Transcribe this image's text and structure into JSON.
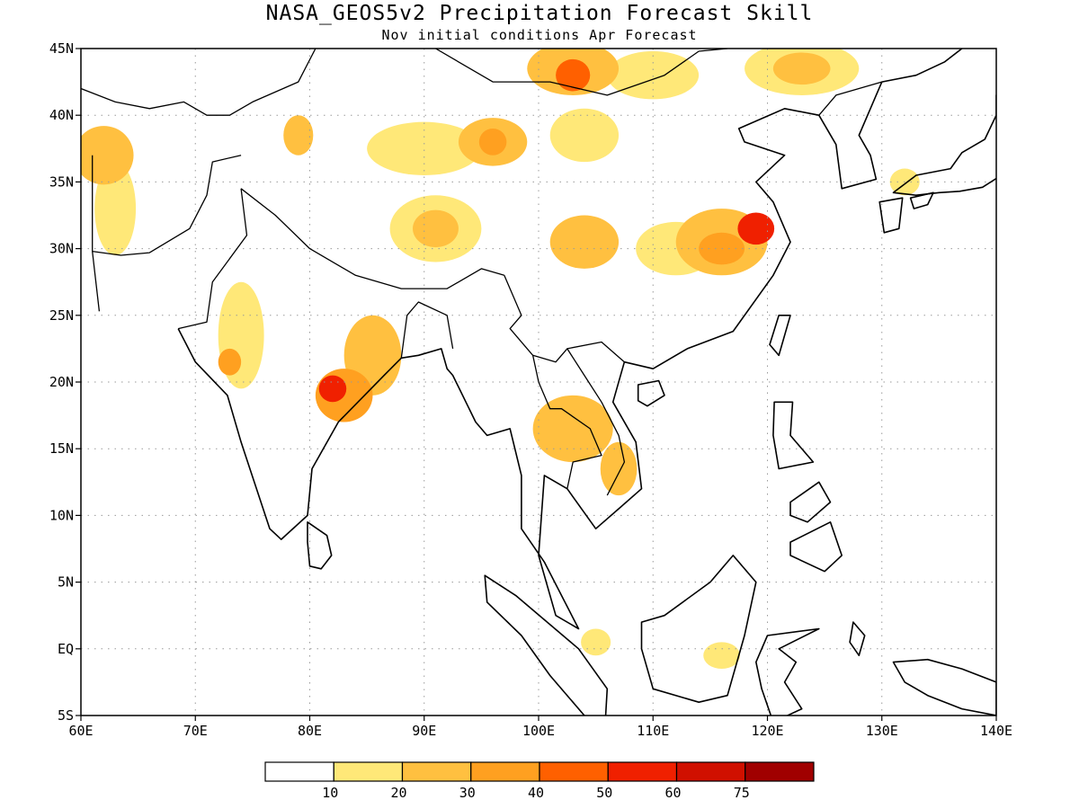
{
  "title": "NASA_GEOS5v2 Precipitation Forecast Skill",
  "subtitle": "Nov initial conditions  Apr Forecast",
  "map": {
    "lon_range": [
      60,
      140
    ],
    "lat_range": [
      -5,
      45
    ],
    "grid": true,
    "coastlines": true,
    "political_boundaries": true
  },
  "axes": {
    "x_ticks": [
      {
        "value": 60,
        "label": "60E"
      },
      {
        "value": 70,
        "label": "70E"
      },
      {
        "value": 80,
        "label": "80E"
      },
      {
        "value": 90,
        "label": "90E"
      },
      {
        "value": 100,
        "label": "100E"
      },
      {
        "value": 110,
        "label": "110E"
      },
      {
        "value": 120,
        "label": "120E"
      },
      {
        "value": 130,
        "label": "130E"
      },
      {
        "value": 140,
        "label": "140E"
      }
    ],
    "y_ticks": [
      {
        "value": 45,
        "label": "45N"
      },
      {
        "value": 40,
        "label": "40N"
      },
      {
        "value": 35,
        "label": "35N"
      },
      {
        "value": 30,
        "label": "30N"
      },
      {
        "value": 25,
        "label": "25N"
      },
      {
        "value": 20,
        "label": "20N"
      },
      {
        "value": 15,
        "label": "15N"
      },
      {
        "value": 10,
        "label": "10N"
      },
      {
        "value": 5,
        "label": "5N"
      },
      {
        "value": 0,
        "label": "EQ"
      },
      {
        "value": -5,
        "label": "5S"
      }
    ]
  },
  "colorbar": {
    "colors": [
      "#ffffff",
      "#ffe878",
      "#ffc040",
      "#ffa020",
      "#ff6000",
      "#f02000",
      "#d01000",
      "#a00000"
    ],
    "labels": [
      "10",
      "20",
      "30",
      "40",
      "50",
      "60",
      "75"
    ]
  },
  "skill_regions": [
    {
      "lon": 62,
      "lat": 37,
      "rx": 2.6,
      "ry": 2.2,
      "level": 2
    },
    {
      "lon": 63,
      "lat": 33,
      "rx": 1.8,
      "ry": 3.5,
      "level": 1
    },
    {
      "lon": 79,
      "lat": 38.5,
      "rx": 1.3,
      "ry": 1.5,
      "level": 2
    },
    {
      "lon": 74,
      "lat": 23.5,
      "rx": 2,
      "ry": 4,
      "level": 1
    },
    {
      "lon": 73,
      "lat": 21.5,
      "rx": 1,
      "ry": 1,
      "level": 3
    },
    {
      "lon": 83,
      "lat": 19,
      "rx": 2.5,
      "ry": 2,
      "level": 3
    },
    {
      "lon": 82,
      "lat": 19.5,
      "rx": 1.2,
      "ry": 1,
      "level": 5
    },
    {
      "lon": 85.5,
      "lat": 22,
      "rx": 2.5,
      "ry": 3,
      "level": 2
    },
    {
      "lon": 90,
      "lat": 37.5,
      "rx": 5,
      "ry": 2,
      "level": 1
    },
    {
      "lon": 96,
      "lat": 38,
      "rx": 3,
      "ry": 1.8,
      "level": 2
    },
    {
      "lon": 96,
      "lat": 38,
      "rx": 1.2,
      "ry": 1,
      "level": 3
    },
    {
      "lon": 91,
      "lat": 31.5,
      "rx": 4,
      "ry": 2.5,
      "level": 1
    },
    {
      "lon": 91,
      "lat": 31.5,
      "rx": 2,
      "ry": 1.4,
      "level": 2
    },
    {
      "lon": 103,
      "lat": 43.5,
      "rx": 4,
      "ry": 2,
      "level": 2
    },
    {
      "lon": 103,
      "lat": 43,
      "rx": 1.5,
      "ry": 1.2,
      "level": 4
    },
    {
      "lon": 110,
      "lat": 43,
      "rx": 4,
      "ry": 1.8,
      "level": 1
    },
    {
      "lon": 123,
      "lat": 43.5,
      "rx": 5,
      "ry": 2,
      "level": 1
    },
    {
      "lon": 123,
      "lat": 43.5,
      "rx": 2.5,
      "ry": 1.2,
      "level": 2
    },
    {
      "lon": 104,
      "lat": 38.5,
      "rx": 3,
      "ry": 2,
      "level": 1
    },
    {
      "lon": 104,
      "lat": 30.5,
      "rx": 3,
      "ry": 2,
      "level": 2
    },
    {
      "lon": 112,
      "lat": 30,
      "rx": 3.5,
      "ry": 2,
      "level": 1
    },
    {
      "lon": 116,
      "lat": 30.5,
      "rx": 4,
      "ry": 2.5,
      "level": 2
    },
    {
      "lon": 116,
      "lat": 30,
      "rx": 2,
      "ry": 1.2,
      "level": 3
    },
    {
      "lon": 119,
      "lat": 31.5,
      "rx": 1.6,
      "ry": 1.2,
      "level": 5
    },
    {
      "lon": 103,
      "lat": 16.5,
      "rx": 3.5,
      "ry": 2.5,
      "level": 2
    },
    {
      "lon": 107,
      "lat": 13.5,
      "rx": 1.6,
      "ry": 2,
      "level": 2
    },
    {
      "lon": 132,
      "lat": 35,
      "rx": 1.3,
      "ry": 1,
      "level": 1
    },
    {
      "lon": 116,
      "lat": -0.5,
      "rx": 1.6,
      "ry": 1,
      "level": 1
    },
    {
      "lon": 105,
      "lat": 0.5,
      "rx": 1.3,
      "ry": 1,
      "level": 1
    }
  ],
  "land_masses": [
    {
      "name": "india",
      "path": [
        [
          68.5,
          24
        ],
        [
          70,
          21.5
        ],
        [
          72.8,
          19
        ],
        [
          74,
          15.5
        ],
        [
          76.5,
          9
        ],
        [
          77.5,
          8.2
        ],
        [
          79.8,
          10
        ],
        [
          80.2,
          13.5
        ],
        [
          82.5,
          17
        ],
        [
          86.5,
          20.5
        ],
        [
          88,
          21.8
        ],
        [
          89.5,
          22
        ],
        [
          91.5,
          22.5
        ],
        [
          92,
          21
        ],
        [
          92.5,
          20.5
        ],
        [
          94.5,
          17
        ],
        [
          95.5,
          16
        ],
        [
          97.5,
          16.5
        ],
        [
          98.5,
          13
        ],
        [
          98.5,
          9
        ],
        [
          100.5,
          6.5
        ],
        [
          103.5,
          1.5
        ],
        [
          101.5,
          2.5
        ],
        [
          100,
          7
        ],
        [
          100.5,
          13
        ],
        [
          102.5,
          12
        ],
        [
          105,
          9
        ],
        [
          107,
          10.5
        ],
        [
          109,
          12
        ],
        [
          108.5,
          15.5
        ],
        [
          106.5,
          18.5
        ],
        [
          107.5,
          21.5
        ],
        [
          110,
          21
        ],
        [
          113,
          22.5
        ],
        [
          117,
          23.8
        ],
        [
          120.5,
          28
        ],
        [
          122,
          30.5
        ],
        [
          120.5,
          33.5
        ],
        [
          119,
          35
        ],
        [
          121.5,
          37
        ],
        [
          118,
          38
        ],
        [
          117.5,
          39
        ],
        [
          121.5,
          40.5
        ],
        [
          124.5,
          40
        ],
        [
          126,
          37.8
        ],
        [
          126.5,
          34.5
        ],
        [
          129.5,
          35.2
        ],
        [
          129,
          37
        ],
        [
          128,
          38.5
        ],
        [
          130,
          42.5
        ],
        [
          133,
          43
        ],
        [
          135.5,
          44
        ],
        [
          137,
          45
        ]
      ]
    }
  ],
  "country_borders": [
    {
      "name": "himalaya",
      "path": [
        [
          74,
          34.5
        ],
        [
          77,
          32.5
        ],
        [
          80,
          30
        ],
        [
          84,
          28
        ],
        [
          88,
          27
        ],
        [
          92,
          27
        ],
        [
          95,
          28.5
        ],
        [
          97,
          28
        ]
      ]
    },
    {
      "name": "pakistan-india",
      "path": [
        [
          68.5,
          24
        ],
        [
          71,
          24.5
        ],
        [
          71.5,
          27.5
        ],
        [
          74.5,
          31
        ],
        [
          74,
          34.5
        ]
      ]
    },
    {
      "name": "afghanistan",
      "path": [
        [
          61,
          29.8
        ],
        [
          63.5,
          29.5
        ],
        [
          66,
          29.7
        ],
        [
          69.5,
          31.5
        ],
        [
          71,
          34
        ],
        [
          71.5,
          36.5
        ],
        [
          74,
          37
        ]
      ]
    },
    {
      "name": "iran",
      "path": [
        [
          61,
          37
        ],
        [
          61,
          29.8
        ],
        [
          61.6,
          25.3
        ]
      ]
    },
    {
      "name": "central-asia",
      "path": [
        [
          60,
          42
        ],
        [
          63,
          41
        ],
        [
          66,
          40.5
        ],
        [
          69,
          41
        ],
        [
          71,
          40
        ],
        [
          73,
          40
        ],
        [
          75,
          41
        ],
        [
          79,
          42.5
        ],
        [
          80.5,
          45
        ]
      ]
    },
    {
      "name": "china-mongolia",
      "path": [
        [
          87,
          49
        ],
        [
          91,
          45
        ],
        [
          96,
          42.5
        ],
        [
          101,
          42.5
        ],
        [
          106,
          41.5
        ],
        [
          111,
          43
        ],
        [
          114,
          44.8
        ],
        [
          116.5,
          45
        ]
      ]
    },
    {
      "name": "china-myanmar",
      "path": [
        [
          97,
          28
        ],
        [
          98.5,
          25
        ],
        [
          97.5,
          24
        ],
        [
          99.5,
          22
        ],
        [
          101.5,
          21.5
        ],
        [
          102.5,
          22.5
        ],
        [
          105.5,
          23
        ],
        [
          107.5,
          21.5
        ]
      ]
    },
    {
      "name": "thailand-laos",
      "path": [
        [
          99.5,
          22
        ],
        [
          100,
          20
        ],
        [
          101,
          18
        ],
        [
          102,
          18
        ],
        [
          104.5,
          16.5
        ],
        [
          105.5,
          14.5
        ],
        [
          103,
          14
        ],
        [
          102.5,
          12
        ]
      ]
    },
    {
      "name": "vietnam-laos",
      "path": [
        [
          102.5,
          22.5
        ],
        [
          104,
          20.5
        ],
        [
          105.5,
          18.5
        ],
        [
          107,
          16
        ],
        [
          107.5,
          14
        ],
        [
          106,
          11.5
        ]
      ]
    },
    {
      "name": "bangladesh",
      "path": [
        [
          88,
          21.8
        ],
        [
          88.5,
          25
        ],
        [
          89.5,
          26
        ],
        [
          92,
          25
        ],
        [
          92.5,
          22.5
        ]
      ]
    },
    {
      "name": "korea",
      "path": [
        [
          124.5,
          40
        ],
        [
          126,
          41.5
        ],
        [
          128,
          42
        ],
        [
          130,
          42.5
        ]
      ]
    }
  ],
  "islands": [
    {
      "name": "sri-lanka",
      "path": [
        [
          79.8,
          9.5
        ],
        [
          81.5,
          8.5
        ],
        [
          81.9,
          7
        ],
        [
          81,
          6
        ],
        [
          80,
          6.2
        ],
        [
          79.8,
          8
        ]
      ]
    },
    {
      "name": "hainan",
      "path": [
        [
          108.7,
          19.8
        ],
        [
          110.5,
          20.1
        ],
        [
          111,
          19
        ],
        [
          109.5,
          18.2
        ],
        [
          108.7,
          18.6
        ]
      ]
    },
    {
      "name": "taiwan",
      "path": [
        [
          121,
          25
        ],
        [
          122,
          25
        ],
        [
          121,
          22
        ],
        [
          120.2,
          22.8
        ]
      ]
    },
    {
      "name": "luzon",
      "path": [
        [
          120.6,
          18.5
        ],
        [
          122.2,
          18.5
        ],
        [
          122,
          16
        ],
        [
          124,
          14
        ],
        [
          121,
          13.5
        ],
        [
          120.5,
          16
        ]
      ]
    },
    {
      "name": "mindanao",
      "path": [
        [
          122,
          8
        ],
        [
          125.5,
          9.5
        ],
        [
          126.5,
          7
        ],
        [
          125,
          5.8
        ],
        [
          122,
          7
        ]
      ]
    },
    {
      "name": "visayas",
      "path": [
        [
          122,
          11
        ],
        [
          124.5,
          12.5
        ],
        [
          125.5,
          11
        ],
        [
          123.5,
          9.5
        ],
        [
          122,
          10
        ]
      ]
    },
    {
      "name": "borneo",
      "path": [
        [
          109,
          2
        ],
        [
          111,
          2.5
        ],
        [
          115,
          5
        ],
        [
          117,
          7
        ],
        [
          119,
          5
        ],
        [
          118,
          1
        ],
        [
          116.5,
          -3.5
        ],
        [
          114,
          -4
        ],
        [
          110,
          -3
        ],
        [
          109,
          0
        ]
      ]
    },
    {
      "name": "sumatra",
      "path": [
        [
          95.3,
          5.5
        ],
        [
          98,
          4
        ],
        [
          103.5,
          0
        ],
        [
          106,
          -3
        ],
        [
          105.8,
          -5.9
        ],
        [
          104,
          -5
        ],
        [
          101,
          -2
        ],
        [
          98.5,
          1
        ],
        [
          95.5,
          3.5
        ]
      ]
    },
    {
      "name": "sulawesi",
      "path": [
        [
          120,
          1
        ],
        [
          124.5,
          1.5
        ],
        [
          121,
          0
        ],
        [
          122.5,
          -1
        ],
        [
          121.5,
          -2.5
        ],
        [
          123,
          -4.5
        ],
        [
          120.5,
          -5.5
        ],
        [
          119.5,
          -3
        ],
        [
          119,
          -1
        ]
      ]
    },
    {
      "name": "halmahera",
      "path": [
        [
          127.5,
          2
        ],
        [
          128.5,
          1
        ],
        [
          128,
          -0.5
        ],
        [
          127.2,
          0.5
        ]
      ]
    },
    {
      "name": "new-guinea",
      "path": [
        [
          131,
          -1
        ],
        [
          134,
          -0.8
        ],
        [
          137,
          -1.5
        ],
        [
          140,
          -2.5
        ],
        [
          140,
          -5
        ],
        [
          137,
          -4.5
        ],
        [
          134,
          -3.5
        ],
        [
          132,
          -2.5
        ]
      ]
    },
    {
      "name": "japan-kyushu",
      "path": [
        [
          129.8,
          33.5
        ],
        [
          131.8,
          33.8
        ],
        [
          131.5,
          31.5
        ],
        [
          130.2,
          31.2
        ]
      ]
    },
    {
      "name": "japan-shikoku",
      "path": [
        [
          132.5,
          33.8
        ],
        [
          134.5,
          34.2
        ],
        [
          134,
          33.3
        ],
        [
          132.8,
          33
        ]
      ]
    },
    {
      "name": "japan-honshu",
      "path": [
        [
          131,
          34.2
        ],
        [
          133,
          35.5
        ],
        [
          136,
          36
        ],
        [
          137,
          37.2
        ],
        [
          139,
          38.2
        ],
        [
          140,
          40
        ],
        [
          140,
          41.5
        ],
        [
          141.5,
          40
        ],
        [
          141,
          38
        ],
        [
          140.8,
          35.7
        ],
        [
          138.8,
          34.6
        ],
        [
          136.8,
          34.3
        ],
        [
          135,
          34.2
        ],
        [
          133,
          34
        ]
      ]
    }
  ]
}
